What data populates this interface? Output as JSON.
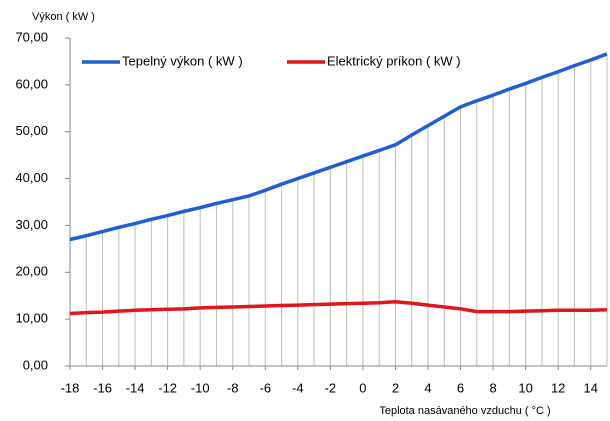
{
  "chart_data": {
    "type": "line",
    "ylabel": "Výkon ( kW )",
    "xlabel": "Teplota nasávaného vzduchu ( °C )",
    "x": [
      -18,
      -17,
      -16,
      -15,
      -14,
      -13,
      -12,
      -11,
      -10,
      -9,
      -8,
      -7,
      -6,
      -5,
      -4,
      -3,
      -2,
      -1,
      0,
      1,
      2,
      3,
      4,
      5,
      6,
      7,
      8,
      9,
      10,
      11,
      12,
      13,
      14,
      15
    ],
    "series": [
      {
        "name": "Tepelný výkon ( kW )",
        "color": "#1f5fd6",
        "values": [
          27.0,
          27.8,
          28.7,
          29.6,
          30.4,
          31.3,
          32.1,
          33.0,
          33.8,
          34.7,
          35.5,
          36.3,
          37.5,
          38.8,
          40.0,
          41.2,
          42.4,
          43.6,
          44.8,
          46.0,
          47.2,
          49.3,
          51.3,
          53.3,
          55.3,
          56.6,
          57.8,
          59.1,
          60.3,
          61.6,
          62.8,
          64.1,
          65.3,
          66.6
        ]
      },
      {
        "name": "Elektrický príkon ( kW )",
        "color": "#e0161c",
        "values": [
          11.2,
          11.4,
          11.5,
          11.7,
          11.9,
          12.0,
          12.1,
          12.2,
          12.4,
          12.5,
          12.6,
          12.7,
          12.8,
          12.9,
          13.0,
          13.1,
          13.2,
          13.3,
          13.4,
          13.5,
          13.7,
          13.4,
          13.0,
          12.6,
          12.2,
          11.6,
          11.6,
          11.6,
          11.7,
          11.8,
          11.9,
          11.9,
          11.9,
          12.0
        ]
      }
    ],
    "xlim": [
      -18,
      15
    ],
    "xticks": [
      -18,
      -16,
      -14,
      -12,
      -10,
      -8,
      -6,
      -4,
      -2,
      0,
      2,
      4,
      6,
      8,
      10,
      12,
      14
    ],
    "ylim": [
      0,
      70
    ],
    "yticks": [
      {
        "value": 0,
        "label": "0,00"
      },
      {
        "value": 10,
        "label": "10,00"
      },
      {
        "value": 20,
        "label": "20,00"
      },
      {
        "value": 30,
        "label": "30,00"
      },
      {
        "value": 40,
        "label": "40,00"
      },
      {
        "value": 50,
        "label": "50,00"
      },
      {
        "value": 60,
        "label": "60,00"
      },
      {
        "value": 70,
        "label": "70,00"
      }
    ],
    "drop_lines": true,
    "legend": "top"
  }
}
